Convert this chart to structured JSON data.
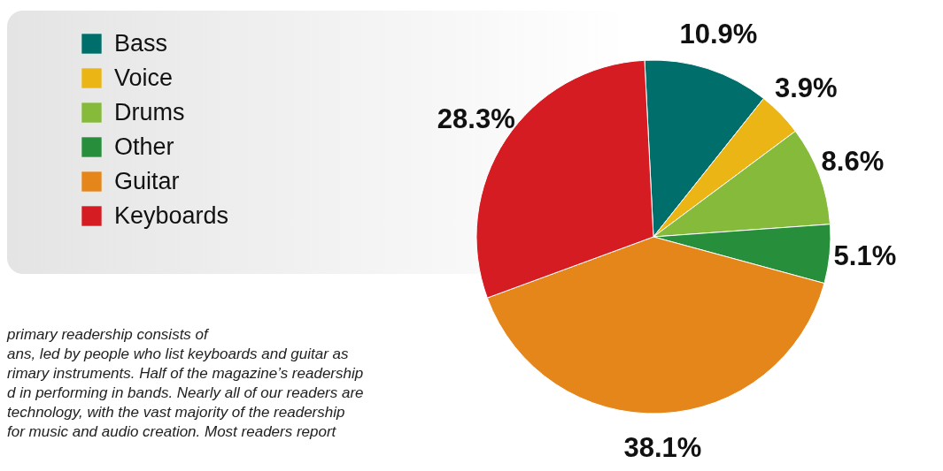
{
  "chart_data": {
    "type": "pie",
    "categories": [
      "Bass",
      "Voice",
      "Drums",
      "Other",
      "Guitar",
      "Keyboards"
    ],
    "values": [
      10.9,
      3.9,
      8.6,
      5.1,
      38.1,
      28.3
    ],
    "value_labels": [
      "10.9%",
      "3.9%",
      "8.6%",
      "5.1%",
      "38.1%",
      "28.3%"
    ],
    "colors": [
      "#006e6a",
      "#ebb515",
      "#85ba3a",
      "#278f3b",
      "#e5861b",
      "#d51c22"
    ],
    "legend": "top left",
    "annotations": [
      "primary readership consists of",
      "ans, led by people who list keyboards and guitar as",
      "rimary instruments. Half of the magazine’s readership",
      "d in performing in bands. Nearly all of our readers are",
      "technology, with the vast majority of the readership",
      "for music and audio creation. Most readers report"
    ]
  }
}
